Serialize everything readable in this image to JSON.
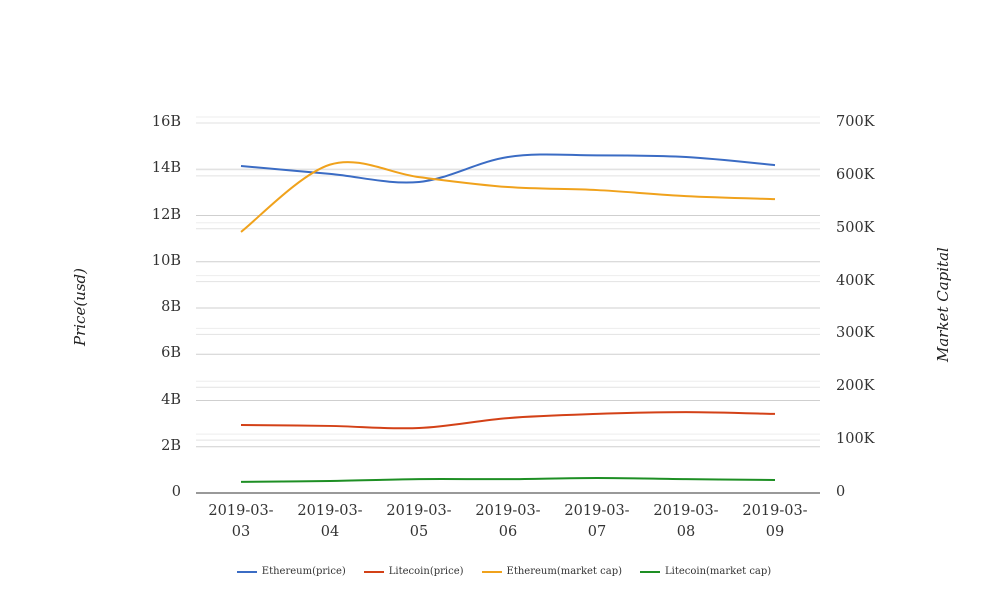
{
  "chart_data": {
    "type": "line",
    "categories": [
      "2019-03-03",
      "2019-03-04",
      "2019-03-05",
      "2019-03-06",
      "2019-03-07",
      "2019-03-08",
      "2019-03-09"
    ],
    "ylabel": "Price(usd)",
    "y2label": "Market Capital",
    "ylim": [
      0,
      16
    ],
    "y_ticks": [
      "0",
      "2B",
      "4B",
      "6B",
      "8B",
      "10B",
      "12B",
      "14B",
      "16B"
    ],
    "y2lim": [
      0,
      700
    ],
    "y2_ticks": [
      "0",
      "100K",
      "200K",
      "300K",
      "400K",
      "500K",
      "600K",
      "700K"
    ],
    "grid": true,
    "legend_position": "bottom",
    "series": [
      {
        "name": "Ethereum(price)",
        "color": "#3b6cc4",
        "values": [
          14.14,
          13.8,
          13.45,
          14.53,
          14.6,
          14.53,
          14.18
        ]
      },
      {
        "name": "Litecoin(price)",
        "color": "#d34117",
        "values": [
          2.94,
          2.9,
          2.81,
          3.24,
          3.42,
          3.5,
          3.42
        ]
      },
      {
        "name": "Ethereum(market cap)",
        "color": "#f0a21c",
        "values": [
          11.29,
          14.2,
          13.66,
          13.23,
          13.1,
          12.84,
          12.71
        ]
      },
      {
        "name": "Litecoin(market cap)",
        "color": "#1e8f24",
        "values": [
          0.48,
          0.52,
          0.6,
          0.6,
          0.65,
          0.6,
          0.56
        ]
      }
    ]
  }
}
